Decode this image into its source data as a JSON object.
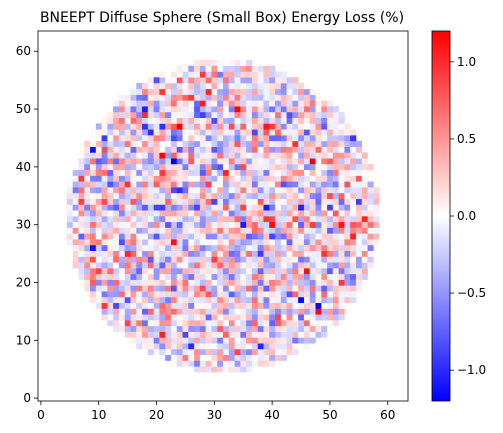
{
  "chart_data": {
    "type": "heatmap",
    "title": "BNEEPT Diffuse Sphere (Small Box) Energy Loss (%)",
    "xlabel": "",
    "ylabel": "",
    "grid_size": 64,
    "xlim": [
      -0.5,
      63.5
    ],
    "ylim": [
      -0.5,
      63.5
    ],
    "x_ticks": [
      0,
      10,
      20,
      30,
      40,
      50,
      60
    ],
    "y_ticks": [
      0,
      10,
      20,
      30,
      40,
      50,
      60
    ],
    "mask": {
      "shape": "disk",
      "center": [
        31.5,
        31.5
      ],
      "radius": 27
    },
    "value_model": {
      "description": "pixel-level noise within disk; values sampled pseudo-randomly",
      "seed": 20240611,
      "std": 0.4,
      "edge_falloff": true
    },
    "colorbar": {
      "colormap": "bwr",
      "vmin": -1.2,
      "vmax": 1.2,
      "ticks": [
        -1.0,
        -0.5,
        0.0,
        0.5,
        1.0
      ],
      "tick_labels": [
        "−1.0",
        "−0.5",
        "0.0",
        "0.5",
        "1.0"
      ],
      "colors": {
        "low": "#0000ff",
        "mid": "#ffffff",
        "high": "#ff0000"
      }
    },
    "grid": false,
    "legend": "none"
  }
}
